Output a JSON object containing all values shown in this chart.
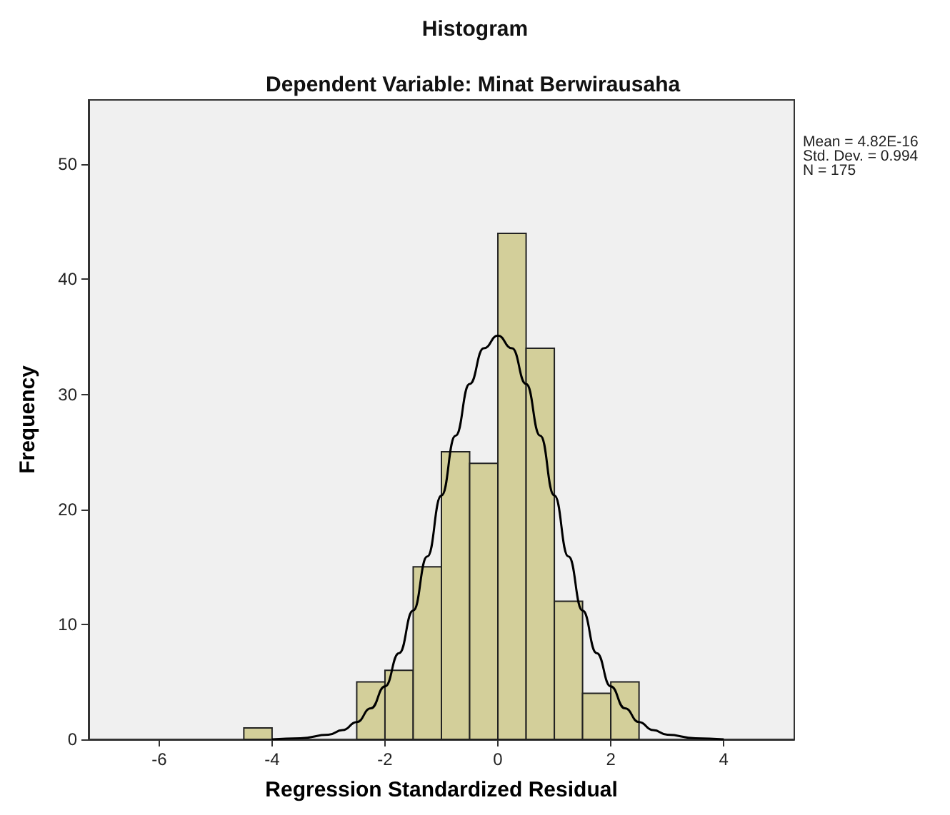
{
  "chart_data": {
    "type": "histogram",
    "title": "Histogram",
    "subtitle": "Dependent Variable: Minat Berwirausaha",
    "xlabel": "Regression Standardized Residual",
    "ylabel": "Frequency",
    "bins": [
      -4.5,
      -4,
      -3.5,
      -3,
      -2.5,
      -2,
      -1.5,
      -1,
      -0.5,
      0,
      0.5,
      1,
      1.5,
      2,
      2.5
    ],
    "values": [
      1,
      0,
      0,
      0,
      5,
      6,
      15,
      25,
      24,
      44,
      34,
      12,
      4,
      5
    ],
    "color": "#d3cf9a",
    "series": [
      {
        "type": "line",
        "color": "#000000",
        "marker": "none",
        "x": [
          -4,
          -3.5,
          -3,
          -2.75,
          -2.5,
          -2.25,
          -2,
          -1.75,
          -1.5,
          -1.25,
          -1,
          -0.75,
          -0.5,
          -0.25,
          0,
          0.25,
          0.5,
          0.75,
          1,
          1.25,
          1.5,
          1.75,
          2,
          2.25,
          2.5,
          2.75,
          3,
          3.5,
          4
        ],
        "values": [
          0,
          0.1,
          0.4,
          0.8,
          1.5,
          2.7,
          4.6,
          7.5,
          11.2,
          15.9,
          21.2,
          26.4,
          30.9,
          34.0,
          35.1,
          34.0,
          30.9,
          26.4,
          21.2,
          15.9,
          11.2,
          7.5,
          4.6,
          2.7,
          1.5,
          0.8,
          0.4,
          0.1,
          0
        ]
      }
    ],
    "annotations": [
      "Mean = 4.82E-16",
      "Std. Dev. = 0.994",
      "N = 175"
    ],
    "xlim": [
      -7.25,
      5.25
    ],
    "xticks": [
      -6,
      -4,
      -2,
      0,
      2,
      4
    ],
    "ylim": [
      0,
      55.6
    ],
    "yticks": [
      0,
      10,
      20,
      30,
      40,
      50
    ],
    "grid": false
  }
}
